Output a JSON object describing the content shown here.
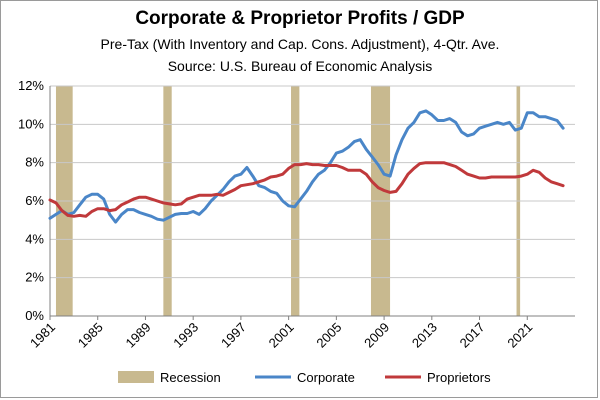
{
  "chart_data": {
    "type": "line",
    "title": "Corporate & Proprietor Profits / GDP",
    "subtitle": "Pre-Tax (With Inventory and Cap. Cons. Adjustment), 4-Qtr. Ave.",
    "source": "Source:  U.S. Bureau of Economic Analysis",
    "xlim": [
      1981,
      2025
    ],
    "ylim": [
      0,
      12
    ],
    "x_ticks": [
      1981,
      1985,
      1989,
      1993,
      1997,
      2001,
      2005,
      2009,
      2013,
      2017,
      2021
    ],
    "x_tick_labels": [
      "1981",
      "1985",
      "1989",
      "1993",
      "1997",
      "2001",
      "2005",
      "2009",
      "2013",
      "2017",
      "2021"
    ],
    "y_ticks": [
      0,
      2,
      4,
      6,
      8,
      10,
      12
    ],
    "y_tick_labels": [
      "0%",
      "2%",
      "4%",
      "6%",
      "8%",
      "10%",
      "12%"
    ],
    "gridlines": "horizontal",
    "legend_position": "bottom",
    "recessions": [
      [
        1981.5,
        1982.9
      ],
      [
        1990.5,
        1991.2
      ],
      [
        2001.2,
        2001.9
      ],
      [
        2007.9,
        2009.5
      ],
      [
        2020.1,
        2020.4
      ]
    ],
    "recession_color": "#c8b98f",
    "series": [
      {
        "name": "Corporate",
        "color": "#4a86c8",
        "x": [
          1981,
          1981.5,
          1982,
          1982.5,
          1983,
          1983.5,
          1984,
          1984.5,
          1985,
          1985.5,
          1986,
          1986.5,
          1987,
          1987.5,
          1988,
          1988.5,
          1989,
          1989.5,
          1990,
          1990.5,
          1991,
          1991.5,
          1992,
          1992.5,
          1993,
          1993.5,
          1994,
          1994.5,
          1995,
          1995.5,
          1996,
          1996.5,
          1997,
          1997.5,
          1998,
          1998.5,
          1999,
          1999.5,
          2000,
          2000.5,
          2001,
          2001.5,
          2002,
          2002.5,
          2003,
          2003.5,
          2004,
          2004.5,
          2005,
          2005.5,
          2006,
          2006.5,
          2007,
          2007.5,
          2008,
          2008.5,
          2009,
          2009.5,
          2010,
          2010.5,
          2011,
          2011.5,
          2012,
          2012.5,
          2013,
          2013.5,
          2014,
          2014.5,
          2015,
          2015.5,
          2016,
          2016.5,
          2017,
          2017.5,
          2018,
          2018.5,
          2019,
          2019.5,
          2020,
          2020.5,
          2021,
          2021.5,
          2022,
          2022.5,
          2023,
          2023.5,
          2024
        ],
        "values": [
          5.1,
          5.3,
          5.5,
          5.3,
          5.4,
          5.8,
          6.2,
          6.35,
          6.35,
          6.1,
          5.3,
          4.9,
          5.3,
          5.55,
          5.55,
          5.4,
          5.3,
          5.2,
          5.05,
          5.0,
          5.15,
          5.3,
          5.35,
          5.35,
          5.45,
          5.3,
          5.6,
          6.0,
          6.3,
          6.6,
          7.0,
          7.3,
          7.4,
          7.75,
          7.3,
          6.8,
          6.7,
          6.5,
          6.4,
          6.0,
          5.75,
          5.7,
          6.1,
          6.5,
          7.0,
          7.4,
          7.6,
          8.0,
          8.5,
          8.6,
          8.8,
          9.1,
          9.2,
          8.7,
          8.3,
          7.9,
          7.4,
          7.3,
          8.4,
          9.2,
          9.8,
          10.1,
          10.6,
          10.7,
          10.5,
          10.2,
          10.2,
          10.3,
          10.1,
          9.6,
          9.4,
          9.5,
          9.8,
          9.9,
          10.0,
          10.1,
          10.0,
          10.1,
          9.7,
          9.8,
          10.6,
          10.6,
          10.4,
          10.4,
          10.3,
          10.2,
          9.8
        ]
      },
      {
        "name": "Proprietors",
        "color": "#c0393b",
        "x": [
          1981,
          1981.5,
          1982,
          1982.5,
          1983,
          1983.5,
          1984,
          1984.5,
          1985,
          1985.5,
          1986,
          1986.5,
          1987,
          1987.5,
          1988,
          1988.5,
          1989,
          1989.5,
          1990,
          1990.5,
          1991,
          1991.5,
          1992,
          1992.5,
          1993,
          1993.5,
          1994,
          1994.5,
          1995,
          1995.5,
          1996,
          1996.5,
          1997,
          1997.5,
          1998,
          1998.5,
          1999,
          1999.5,
          2000,
          2000.5,
          2001,
          2001.5,
          2002,
          2002.5,
          2003,
          2003.5,
          2004,
          2004.5,
          2005,
          2005.5,
          2006,
          2006.5,
          2007,
          2007.5,
          2008,
          2008.5,
          2009,
          2009.5,
          2010,
          2010.5,
          2011,
          2011.5,
          2012,
          2012.5,
          2013,
          2013.5,
          2014,
          2014.5,
          2015,
          2015.5,
          2016,
          2016.5,
          2017,
          2017.5,
          2018,
          2018.5,
          2019,
          2019.5,
          2020,
          2020.5,
          2021,
          2021.5,
          2022,
          2022.5,
          2023,
          2023.5,
          2024
        ],
        "values": [
          6.05,
          5.9,
          5.5,
          5.25,
          5.2,
          5.25,
          5.2,
          5.45,
          5.6,
          5.6,
          5.5,
          5.55,
          5.8,
          5.95,
          6.1,
          6.2,
          6.2,
          6.1,
          6.0,
          5.9,
          5.85,
          5.8,
          5.85,
          6.1,
          6.2,
          6.3,
          6.3,
          6.3,
          6.35,
          6.3,
          6.45,
          6.6,
          6.8,
          6.85,
          6.9,
          7.0,
          7.1,
          7.25,
          7.3,
          7.4,
          7.7,
          7.9,
          7.9,
          7.95,
          7.9,
          7.9,
          7.85,
          7.85,
          7.85,
          7.75,
          7.6,
          7.6,
          7.6,
          7.4,
          7.0,
          6.7,
          6.55,
          6.45,
          6.5,
          6.9,
          7.4,
          7.7,
          7.95,
          8.0,
          8.0,
          8.0,
          8.0,
          7.9,
          7.8,
          7.6,
          7.4,
          7.3,
          7.2,
          7.2,
          7.25,
          7.25,
          7.25,
          7.25,
          7.25,
          7.3,
          7.4,
          7.6,
          7.5,
          7.2,
          7.0,
          6.9,
          6.8
        ]
      }
    ],
    "legend": [
      {
        "label": "Recession",
        "kind": "box",
        "color": "#c8b98f"
      },
      {
        "label": "Corporate",
        "kind": "line",
        "color": "#4a86c8"
      },
      {
        "label": "Proprietors",
        "kind": "line",
        "color": "#c0393b"
      }
    ]
  }
}
